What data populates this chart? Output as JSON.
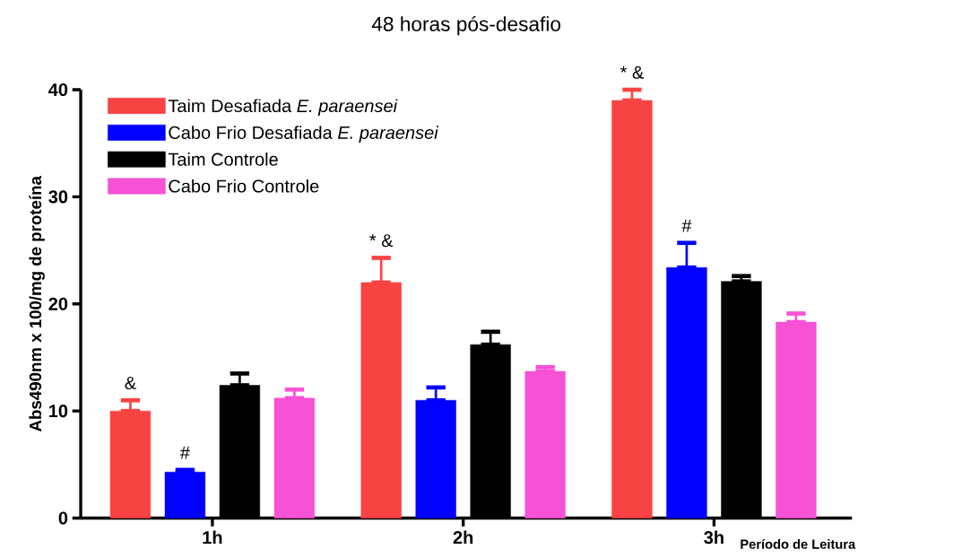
{
  "chart_data": {
    "type": "bar",
    "title": "48 horas pós-desafio",
    "xlabel": "Período de Leitura",
    "ylabel": "Abs490nm x 100/mg de proteína",
    "categories": [
      "1h",
      "2h",
      "3h"
    ],
    "series": [
      {
        "name": "Taim Desafiada *E. paraensei*",
        "color": "#f84343",
        "values": [
          10.0,
          22.0,
          39.0
        ],
        "errors": [
          [
            10.0,
            11.0
          ],
          [
            22.0,
            24.3
          ],
          [
            39.0,
            40.0
          ]
        ]
      },
      {
        "name": "Cabo Frio Desafiada *E. paraensei*",
        "color": "#0000ff",
        "values": [
          4.3,
          11.0,
          23.4
        ],
        "errors": [
          [
            4.3,
            4.5
          ],
          [
            11.0,
            12.2
          ],
          [
            23.4,
            25.7
          ]
        ]
      },
      {
        "name": "Taim Controle",
        "color": "#000000",
        "values": [
          12.4,
          16.2,
          22.1
        ],
        "errors": [
          [
            12.4,
            13.5
          ],
          [
            16.2,
            17.4
          ],
          [
            22.1,
            22.6
          ]
        ]
      },
      {
        "name": "Cabo Frio Controle",
        "color": "#f752d6",
        "values": [
          11.2,
          13.7,
          18.3
        ],
        "errors": [
          [
            11.2,
            12.0
          ],
          [
            13.7,
            14.1
          ],
          [
            18.3,
            19.1
          ]
        ]
      }
    ],
    "ylim": [
      0,
      40
    ],
    "yticks": [
      0,
      10,
      20,
      30,
      40
    ],
    "legend": "top left",
    "annotations": [
      "&",
      "#",
      "* &",
      "* &",
      "#"
    ]
  }
}
